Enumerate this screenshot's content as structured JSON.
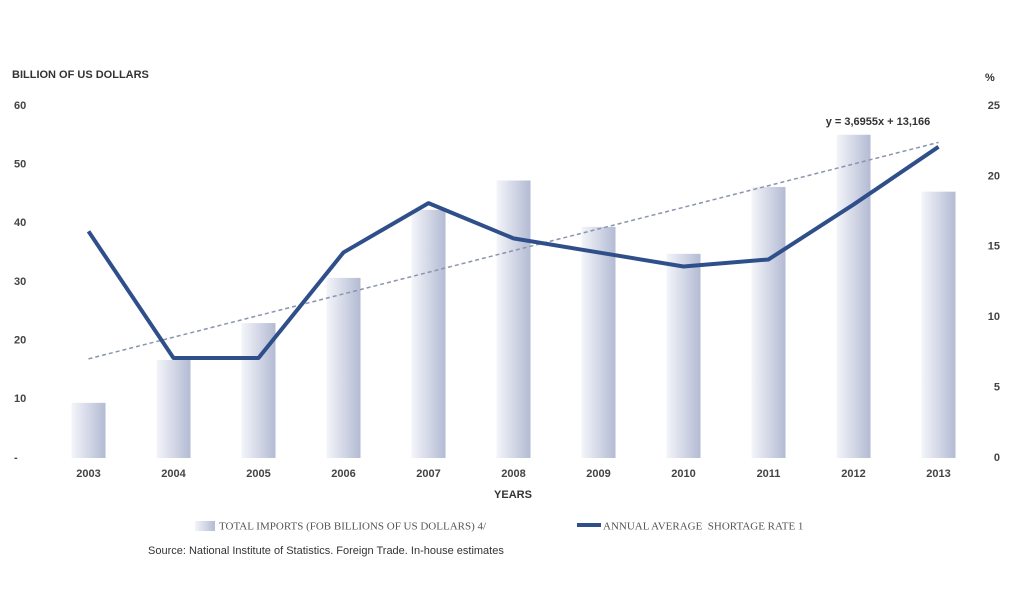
{
  "chart_data": {
    "type": "bar-line",
    "y_label": "BILLION OF US DOLLARS",
    "y2_label": "%",
    "x_label": "YEARS",
    "categories": [
      "2003",
      "2004",
      "2005",
      "2006",
      "2007",
      "2008",
      "2009",
      "2010",
      "2011",
      "2012",
      "2013"
    ],
    "series": [
      {
        "name": "TOTAL IMPORTS (FOB BILLIONS OF US DOLLARS) 4/",
        "type": "bar",
        "color": "#b3bbd3",
        "values": [
          9.4,
          16.7,
          23.0,
          30.7,
          42.3,
          47.3,
          39.4,
          34.8,
          46.2,
          55.1,
          45.4
        ]
      },
      {
        "name": "ANNUAL AVERAGE  SHORTAGE RATE 1",
        "type": "line",
        "axis": "y2",
        "color": "#2f4f8a",
        "values": [
          16.1,
          7.1,
          7.1,
          14.6,
          18.1,
          15.6,
          14.6,
          13.6,
          14.1,
          18.0,
          22.1
        ]
      }
    ],
    "trend": {
      "label": "y = 3,6955x + 13,166",
      "start": 16.9,
      "end": 53.8,
      "color": "#8a94ad"
    },
    "ylim": [
      0,
      60
    ],
    "yticks": [
      {
        "value": 0,
        "label": "-"
      },
      10,
      20,
      30,
      40,
      50,
      60
    ],
    "y2lim": [
      0,
      25
    ],
    "y2ticks": [
      0,
      5,
      10,
      15,
      20,
      25
    ],
    "source": "Source: National Institute of Statistics. Foreign Trade. In-house estimates"
  }
}
